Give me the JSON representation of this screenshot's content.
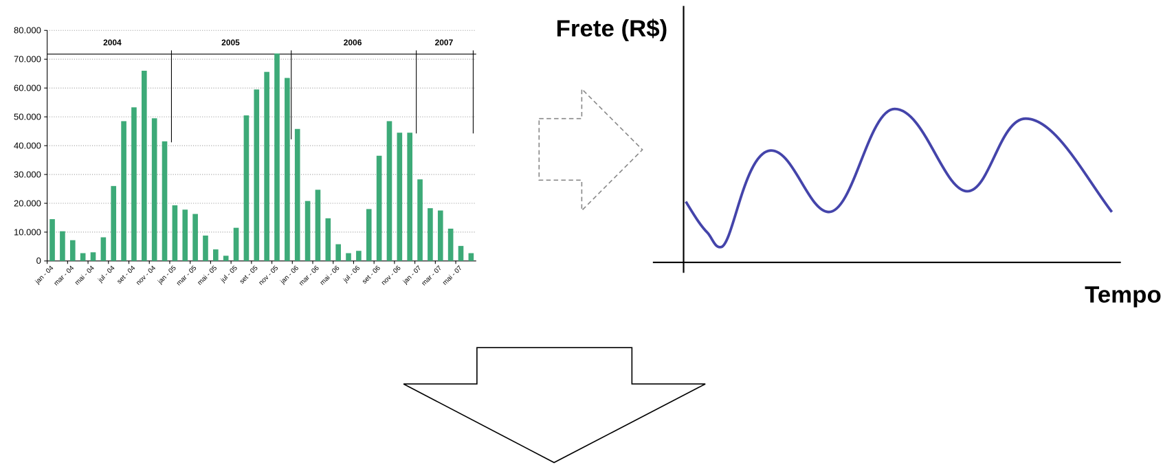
{
  "chart_data": {
    "type": "bar",
    "categories": [
      "jan - 04",
      null,
      "mar - 04",
      null,
      "mai - 04",
      null,
      "jul - 04",
      null,
      "set - 04",
      null,
      "nov - 04",
      null,
      "jan - 05",
      null,
      "mar - 05",
      null,
      "mai - 05",
      null,
      "jul - 05",
      null,
      "set - 05",
      null,
      "nov - 05",
      null,
      "jan - 06",
      null,
      "mar - 06",
      null,
      "mai - 06",
      null,
      "jul - 06",
      null,
      "set - 06",
      null,
      "nov - 06",
      null,
      "jan - 07",
      null,
      "mar - 07",
      null,
      "mai - 07",
      null
    ],
    "values": [
      14500,
      10300,
      7200,
      2700,
      3000,
      8200,
      26000,
      48500,
      53300,
      66000,
      49500,
      41500,
      19300,
      17800,
      16300,
      8800,
      4000,
      1800,
      11500,
      50500,
      59500,
      65600,
      72000,
      63500,
      45800,
      20800,
      24700,
      14800,
      5800,
      2700,
      3500,
      18000,
      36500,
      48500,
      44500,
      44500,
      28300,
      18300,
      17500,
      11200,
      5200,
      2700
    ],
    "color": "#3daa78",
    "ylim": [
      0,
      80000
    ],
    "yticks": [
      0,
      {
        "value": 10000,
        "label": "10.000"
      },
      {
        "value": 20000,
        "label": "20.000"
      },
      {
        "value": 30000,
        "label": "30.000"
      },
      {
        "value": 40000,
        "label": "40.000"
      },
      {
        "value": 50000,
        "label": "50.000"
      },
      {
        "value": 60000,
        "label": "60.000"
      },
      {
        "value": 70000,
        "label": "70.000"
      },
      {
        "value": 80000,
        "label": "80.000"
      }
    ],
    "grid": true,
    "annotations": [
      "2004",
      "2005",
      "2006",
      "2007"
    ]
  },
  "diagram": {
    "y_axis_label": "Frete (R$)",
    "x_axis_label": "Tempo"
  }
}
